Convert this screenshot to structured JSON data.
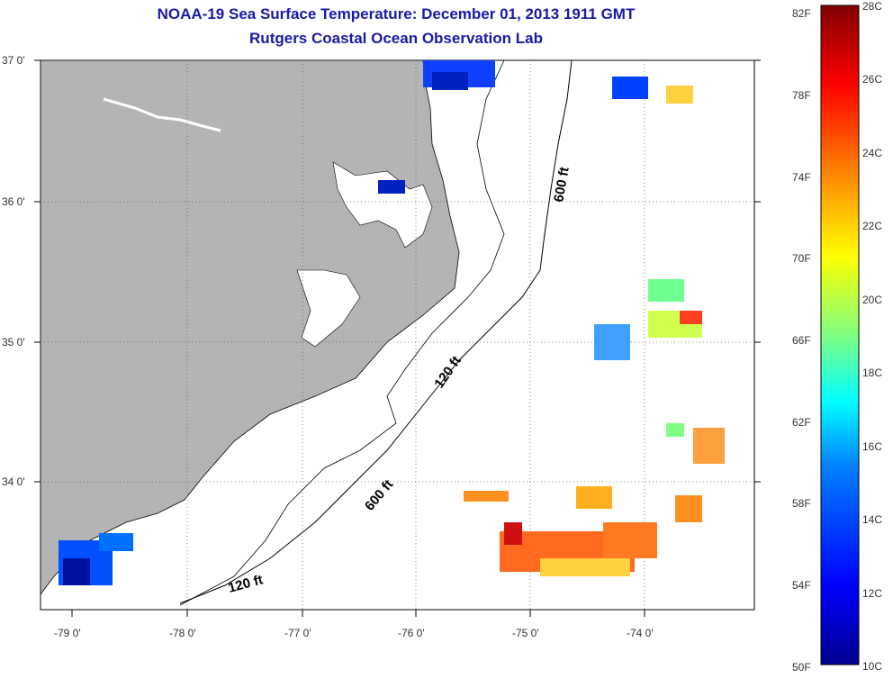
{
  "title": "NOAA-19 Sea Surface Temperature:  December 01, 2013 1911 GMT",
  "subtitle": "Rutgers Coastal Ocean Observation Lab",
  "lat_labels": [
    "37 0'",
    "36 0'",
    "35 0'",
    "34 0'"
  ],
  "lon_labels": [
    "-79 0'",
    "-78 0'",
    "-77 0'",
    "-76 0'",
    "-75 0'",
    "-74 0'"
  ],
  "contour_labels": {
    "c600_north": "600 ft",
    "c120_mid": "120 ft",
    "c600_south": "600 ft",
    "c120_south": "120 ft"
  },
  "colorbar": {
    "f_labels": [
      "82F",
      "78F",
      "74F",
      "70F",
      "66F",
      "62F",
      "58F",
      "54F",
      "50F"
    ],
    "c_labels": [
      "28C",
      "26C",
      "24C",
      "22C",
      "20C",
      "18C",
      "16C",
      "14C",
      "12C",
      "10C"
    ]
  },
  "colors": {
    "land": "#b4b4b4",
    "title": "#1a1aa8",
    "colormap": [
      "#00008f",
      "#0000ff",
      "#0080ff",
      "#00ffff",
      "#80ff80",
      "#ffff00",
      "#ff8000",
      "#ff0000",
      "#800000"
    ]
  }
}
